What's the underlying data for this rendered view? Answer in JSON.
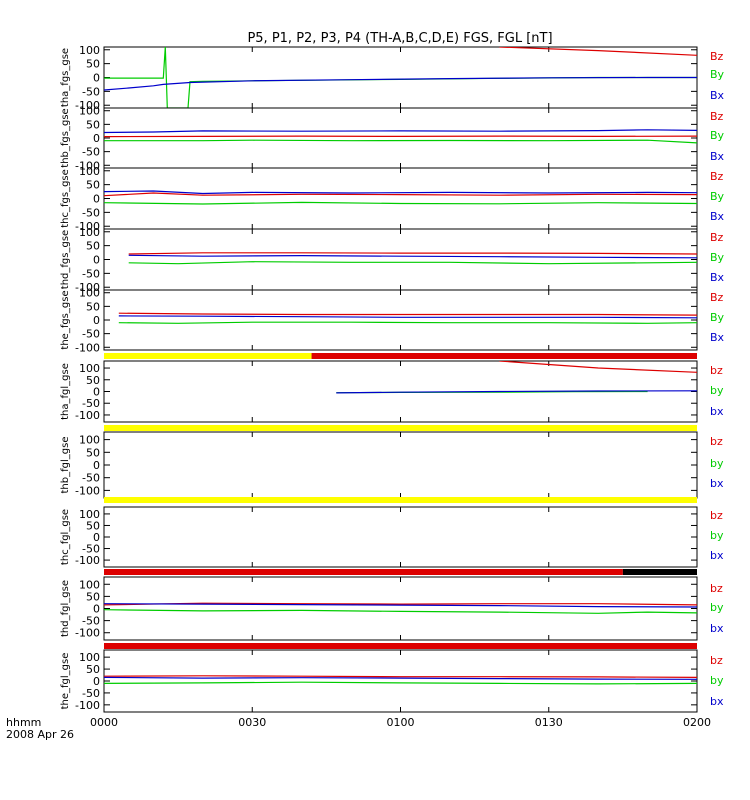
{
  "title": "P5, P1, P2, P3, P4 (TH-A,B,C,D,E) FGS, FGL [nT]",
  "footer": {
    "time_unit": "hhmm",
    "date": "2008 Apr 26"
  },
  "x_axis": {
    "ticks": [
      "0000",
      "0030",
      "0100",
      "0130",
      "0200"
    ],
    "range_minutes": [
      0,
      120
    ]
  },
  "colors": {
    "red": "#dd0000",
    "green": "#00cc00",
    "blue": "#0000cc",
    "black": "#000000",
    "yellow": "#ffff00"
  },
  "chart_data": [
    {
      "type": "line",
      "ylabel": "tha_fgs_gse",
      "ylim": [
        -110,
        110
      ],
      "ticks": [
        100,
        50,
        0,
        -50,
        -100
      ],
      "legend": [
        "Bz",
        "By",
        "Bx"
      ],
      "series": [
        {
          "name": "Bz",
          "color": "red",
          "points": [
            [
              80,
              110
            ],
            [
              100,
              97
            ],
            [
              120,
              80
            ]
          ]
        },
        {
          "name": "By",
          "color": "green",
          "points": [
            [
              0,
              -2
            ],
            [
              12,
              -2
            ],
            [
              12.4,
              110
            ],
            [
              12.8,
              -110
            ],
            [
              17,
              -110
            ],
            [
              17.4,
              -15
            ],
            [
              20,
              -14
            ],
            [
              40,
              -10
            ],
            [
              60,
              -7
            ],
            [
              80,
              -3
            ],
            [
              100,
              0
            ],
            [
              120,
              0
            ]
          ]
        },
        {
          "name": "Bx",
          "color": "blue",
          "points": [
            [
              0,
              -45
            ],
            [
              5,
              -38
            ],
            [
              10,
              -30
            ],
            [
              12,
              -25
            ],
            [
              17.4,
              -18
            ],
            [
              30,
              -12
            ],
            [
              50,
              -8
            ],
            [
              70,
              -4
            ],
            [
              90,
              -1
            ],
            [
              110,
              0
            ],
            [
              120,
              0
            ]
          ]
        }
      ]
    },
    {
      "type": "line",
      "ylabel": "thb_fgs_gse",
      "ylim": [
        -110,
        110
      ],
      "ticks": [
        100,
        50,
        0,
        -50,
        -100
      ],
      "legend": [
        "Bz",
        "By",
        "Bx"
      ],
      "series": [
        {
          "name": "Bz",
          "color": "red",
          "points": [
            [
              0,
              5
            ],
            [
              20,
              6
            ],
            [
              40,
              7
            ],
            [
              60,
              6
            ],
            [
              80,
              7
            ],
            [
              100,
              6
            ],
            [
              120,
              7
            ]
          ]
        },
        {
          "name": "By",
          "color": "green",
          "points": [
            [
              0,
              -10
            ],
            [
              20,
              -10
            ],
            [
              30,
              -8
            ],
            [
              50,
              -10
            ],
            [
              70,
              -9
            ],
            [
              90,
              -10
            ],
            [
              110,
              -8
            ],
            [
              120,
              -18
            ]
          ]
        },
        {
          "name": "Bx",
          "color": "blue",
          "points": [
            [
              0,
              20
            ],
            [
              10,
              22
            ],
            [
              20,
              26
            ],
            [
              40,
              25
            ],
            [
              60,
              26
            ],
            [
              80,
              25
            ],
            [
              100,
              27
            ],
            [
              110,
              30
            ],
            [
              120,
              28
            ]
          ]
        }
      ]
    },
    {
      "type": "line",
      "ylabel": "thc_fgs_gse",
      "ylim": [
        -110,
        110
      ],
      "ticks": [
        100,
        50,
        0,
        -50,
        -100
      ],
      "legend": [
        "Bz",
        "By",
        "Bx"
      ],
      "series": [
        {
          "name": "Bz",
          "color": "red",
          "points": [
            [
              0,
              10
            ],
            [
              10,
              20
            ],
            [
              20,
              12
            ],
            [
              40,
              15
            ],
            [
              60,
              14
            ],
            [
              80,
              12
            ],
            [
              100,
              15
            ],
            [
              120,
              14
            ]
          ]
        },
        {
          "name": "By",
          "color": "green",
          "points": [
            [
              0,
              -15
            ],
            [
              20,
              -20
            ],
            [
              40,
              -14
            ],
            [
              60,
              -18
            ],
            [
              80,
              -19
            ],
            [
              100,
              -15
            ],
            [
              120,
              -18
            ]
          ]
        },
        {
          "name": "Bx",
          "color": "blue",
          "points": [
            [
              0,
              25
            ],
            [
              10,
              27
            ],
            [
              20,
              18
            ],
            [
              30,
              22
            ],
            [
              50,
              20
            ],
            [
              70,
              22
            ],
            [
              90,
              20
            ],
            [
              110,
              22
            ],
            [
              120,
              21
            ]
          ]
        }
      ]
    },
    {
      "type": "line",
      "ylabel": "thd_fgs_gse",
      "ylim": [
        -110,
        110
      ],
      "ticks": [
        100,
        50,
        0,
        -50,
        -100
      ],
      "legend": [
        "Bz",
        "By",
        "Bx"
      ],
      "series": [
        {
          "name": "Bz",
          "color": "red",
          "points": [
            [
              5,
              20
            ],
            [
              20,
              24
            ],
            [
              40,
              24
            ],
            [
              60,
              23
            ],
            [
              80,
              23
            ],
            [
              100,
              22
            ],
            [
              120,
              20
            ]
          ]
        },
        {
          "name": "By",
          "color": "green",
          "points": [
            [
              5,
              -12
            ],
            [
              15,
              -15
            ],
            [
              30,
              -8
            ],
            [
              50,
              -10
            ],
            [
              70,
              -10
            ],
            [
              90,
              -15
            ],
            [
              110,
              -12
            ],
            [
              120,
              -10
            ]
          ]
        },
        {
          "name": "Bx",
          "color": "blue",
          "points": [
            [
              5,
              15
            ],
            [
              20,
              12
            ],
            [
              40,
              14
            ],
            [
              60,
              12
            ],
            [
              80,
              10
            ],
            [
              100,
              8
            ],
            [
              120,
              6
            ]
          ]
        }
      ]
    },
    {
      "type": "line",
      "ylabel": "the_fgs_gse",
      "ylim": [
        -110,
        110
      ],
      "ticks": [
        100,
        50,
        0,
        -50,
        -100
      ],
      "legend": [
        "Bz",
        "By",
        "Bx"
      ],
      "series": [
        {
          "name": "Bz",
          "color": "red",
          "points": [
            [
              3,
              25
            ],
            [
              20,
              22
            ],
            [
              40,
              20
            ],
            [
              60,
              20
            ],
            [
              80,
              20
            ],
            [
              100,
              20
            ],
            [
              120,
              18
            ]
          ]
        },
        {
          "name": "By",
          "color": "green",
          "points": [
            [
              3,
              -10
            ],
            [
              15,
              -12
            ],
            [
              30,
              -8
            ],
            [
              50,
              -8
            ],
            [
              70,
              -10
            ],
            [
              90,
              -10
            ],
            [
              110,
              -12
            ],
            [
              120,
              -10
            ]
          ]
        },
        {
          "name": "Bx",
          "color": "blue",
          "points": [
            [
              3,
              15
            ],
            [
              20,
              14
            ],
            [
              40,
              12
            ],
            [
              60,
              10
            ],
            [
              80,
              10
            ],
            [
              100,
              10
            ],
            [
              120,
              8
            ]
          ]
        }
      ]
    },
    {
      "type": "line",
      "ylabel": "tha_fgl_gse",
      "ylim": [
        -130,
        130
      ],
      "ticks": [
        100,
        50,
        0,
        -50,
        -100
      ],
      "legend": [
        "bz",
        "by",
        "bx"
      ],
      "flag_bar": [
        {
          "from": 0,
          "to": 42,
          "color": "yellow"
        },
        {
          "from": 42,
          "to": 120,
          "color": "red"
        }
      ],
      "series": [
        {
          "name": "bz",
          "color": "red",
          "points": [
            [
              80,
              130
            ],
            [
              100,
              100
            ],
            [
              120,
              82
            ]
          ]
        },
        {
          "name": "by",
          "color": "green",
          "points": [
            [
              47,
              -5
            ],
            [
              60,
              -4
            ],
            [
              80,
              -3
            ],
            [
              95,
              -1
            ],
            [
              110,
              0
            ]
          ]
        },
        {
          "name": "bx",
          "color": "blue",
          "points": [
            [
              47,
              -6
            ],
            [
              60,
              -3
            ],
            [
              80,
              0
            ],
            [
              100,
              2
            ],
            [
              120,
              3
            ]
          ]
        }
      ]
    },
    {
      "type": "line",
      "ylabel": "thb_fgl_gse",
      "ylim": [
        -130,
        130
      ],
      "ticks": [
        100,
        50,
        0,
        -50,
        -100
      ],
      "legend": [
        "bz",
        "by",
        "bx"
      ],
      "flag_bar": [
        {
          "from": 0,
          "to": 120,
          "color": "yellow"
        }
      ],
      "series": []
    },
    {
      "type": "line",
      "ylabel": "thc_fgl_gse",
      "ylim": [
        -130,
        130
      ],
      "ticks": [
        100,
        50,
        0,
        -50,
        -100
      ],
      "legend": [
        "bz",
        "by",
        "bx"
      ],
      "flag_bar": [
        {
          "from": 0,
          "to": 120,
          "color": "yellow"
        }
      ],
      "series": []
    },
    {
      "type": "line",
      "ylabel": "thd_fgl_gse",
      "ylim": [
        -130,
        130
      ],
      "ticks": [
        100,
        50,
        0,
        -50,
        -100
      ],
      "legend": [
        "bz",
        "by",
        "bx"
      ],
      "flag_bar": [
        {
          "from": 0,
          "to": 105,
          "color": "red"
        },
        {
          "from": 105,
          "to": 120,
          "color": "black"
        }
      ],
      "series": [
        {
          "name": "bz",
          "color": "red",
          "points": [
            [
              0,
              15
            ],
            [
              20,
              22
            ],
            [
              40,
              20
            ],
            [
              60,
              18
            ],
            [
              80,
              20
            ],
            [
              100,
              20
            ],
            [
              120,
              15
            ]
          ]
        },
        {
          "name": "by",
          "color": "green",
          "points": [
            [
              0,
              -5
            ],
            [
              20,
              -10
            ],
            [
              40,
              -8
            ],
            [
              60,
              -12
            ],
            [
              80,
              -15
            ],
            [
              100,
              -20
            ],
            [
              110,
              -15
            ],
            [
              120,
              -18
            ]
          ]
        },
        {
          "name": "bx",
          "color": "blue",
          "points": [
            [
              0,
              20
            ],
            [
              20,
              18
            ],
            [
              40,
              16
            ],
            [
              60,
              14
            ],
            [
              80,
              12
            ],
            [
              100,
              8
            ],
            [
              120,
              6
            ]
          ]
        }
      ]
    },
    {
      "type": "line",
      "ylabel": "the_fgl_gse",
      "ylim": [
        -130,
        130
      ],
      "ticks": [
        100,
        50,
        0,
        -50,
        -100
      ],
      "legend": [
        "bz",
        "by",
        "bx"
      ],
      "flag_bar": [
        {
          "from": 0,
          "to": 120,
          "color": "red"
        }
      ],
      "series": [
        {
          "name": "bz",
          "color": "red",
          "points": [
            [
              0,
              20
            ],
            [
              20,
              22
            ],
            [
              40,
              20
            ],
            [
              60,
              18
            ],
            [
              80,
              18
            ],
            [
              100,
              17
            ],
            [
              120,
              15
            ]
          ]
        },
        {
          "name": "by",
          "color": "green",
          "points": [
            [
              0,
              -10
            ],
            [
              20,
              -8
            ],
            [
              40,
              -5
            ],
            [
              60,
              -8
            ],
            [
              80,
              -10
            ],
            [
              100,
              -12
            ],
            [
              120,
              -10
            ]
          ]
        },
        {
          "name": "bx",
          "color": "blue",
          "points": [
            [
              0,
              15
            ],
            [
              20,
              12
            ],
            [
              40,
              14
            ],
            [
              60,
              12
            ],
            [
              80,
              10
            ],
            [
              100,
              8
            ],
            [
              120,
              7
            ]
          ]
        }
      ]
    }
  ]
}
